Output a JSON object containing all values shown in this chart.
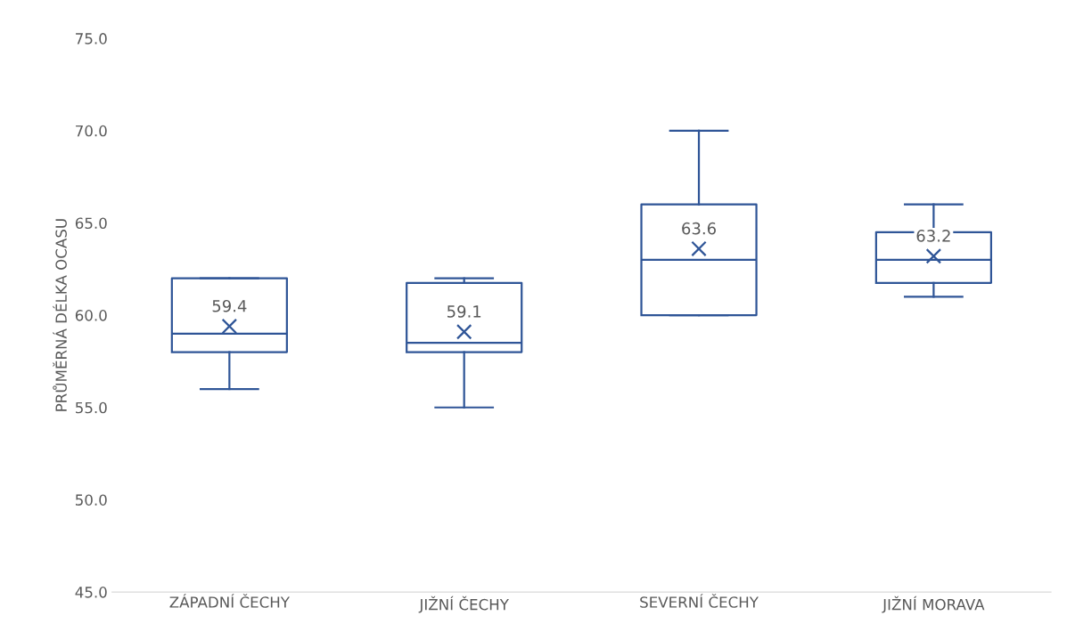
{
  "chart_data": {
    "type": "box",
    "ylabel": "PRŮMĚRNÁ DÉLKA OCASU",
    "categories": [
      "ZÁPADNÍ ČECHY",
      "JIŽNÍ ČECHY",
      "SEVERNÍ ČECHY",
      "JIŽNÍ MORAVA"
    ],
    "boxes": [
      {
        "low": 56,
        "q1": 58,
        "median": 59,
        "q3": 62,
        "high": 62,
        "mean": 59.4
      },
      {
        "low": 55,
        "q1": 58,
        "median": 58.5,
        "q3": 61.75,
        "high": 62,
        "mean": 59.1
      },
      {
        "low": 60,
        "q1": 60,
        "median": 63,
        "q3": 66,
        "high": 70,
        "mean": 63.6
      },
      {
        "low": 61,
        "q1": 61.75,
        "median": 63,
        "q3": 64.5,
        "high": 66,
        "mean": 63.2
      }
    ],
    "color": "#2f5597",
    "marker": "cross",
    "grid": false,
    "ylim": [
      45,
      75
    ],
    "yticks": [
      {
        "value": 45,
        "label": "45.0"
      },
      {
        "value": 50,
        "label": "50.0"
      },
      {
        "value": 55,
        "label": "55.0"
      },
      {
        "value": 60,
        "label": "60.0"
      },
      {
        "value": 65,
        "label": "65.0"
      },
      {
        "value": 70,
        "label": "70.0"
      },
      {
        "value": 75,
        "label": "75.0"
      }
    ],
    "annotations": [
      "59.4",
      "59.1",
      "63.6",
      "63.2"
    ]
  }
}
